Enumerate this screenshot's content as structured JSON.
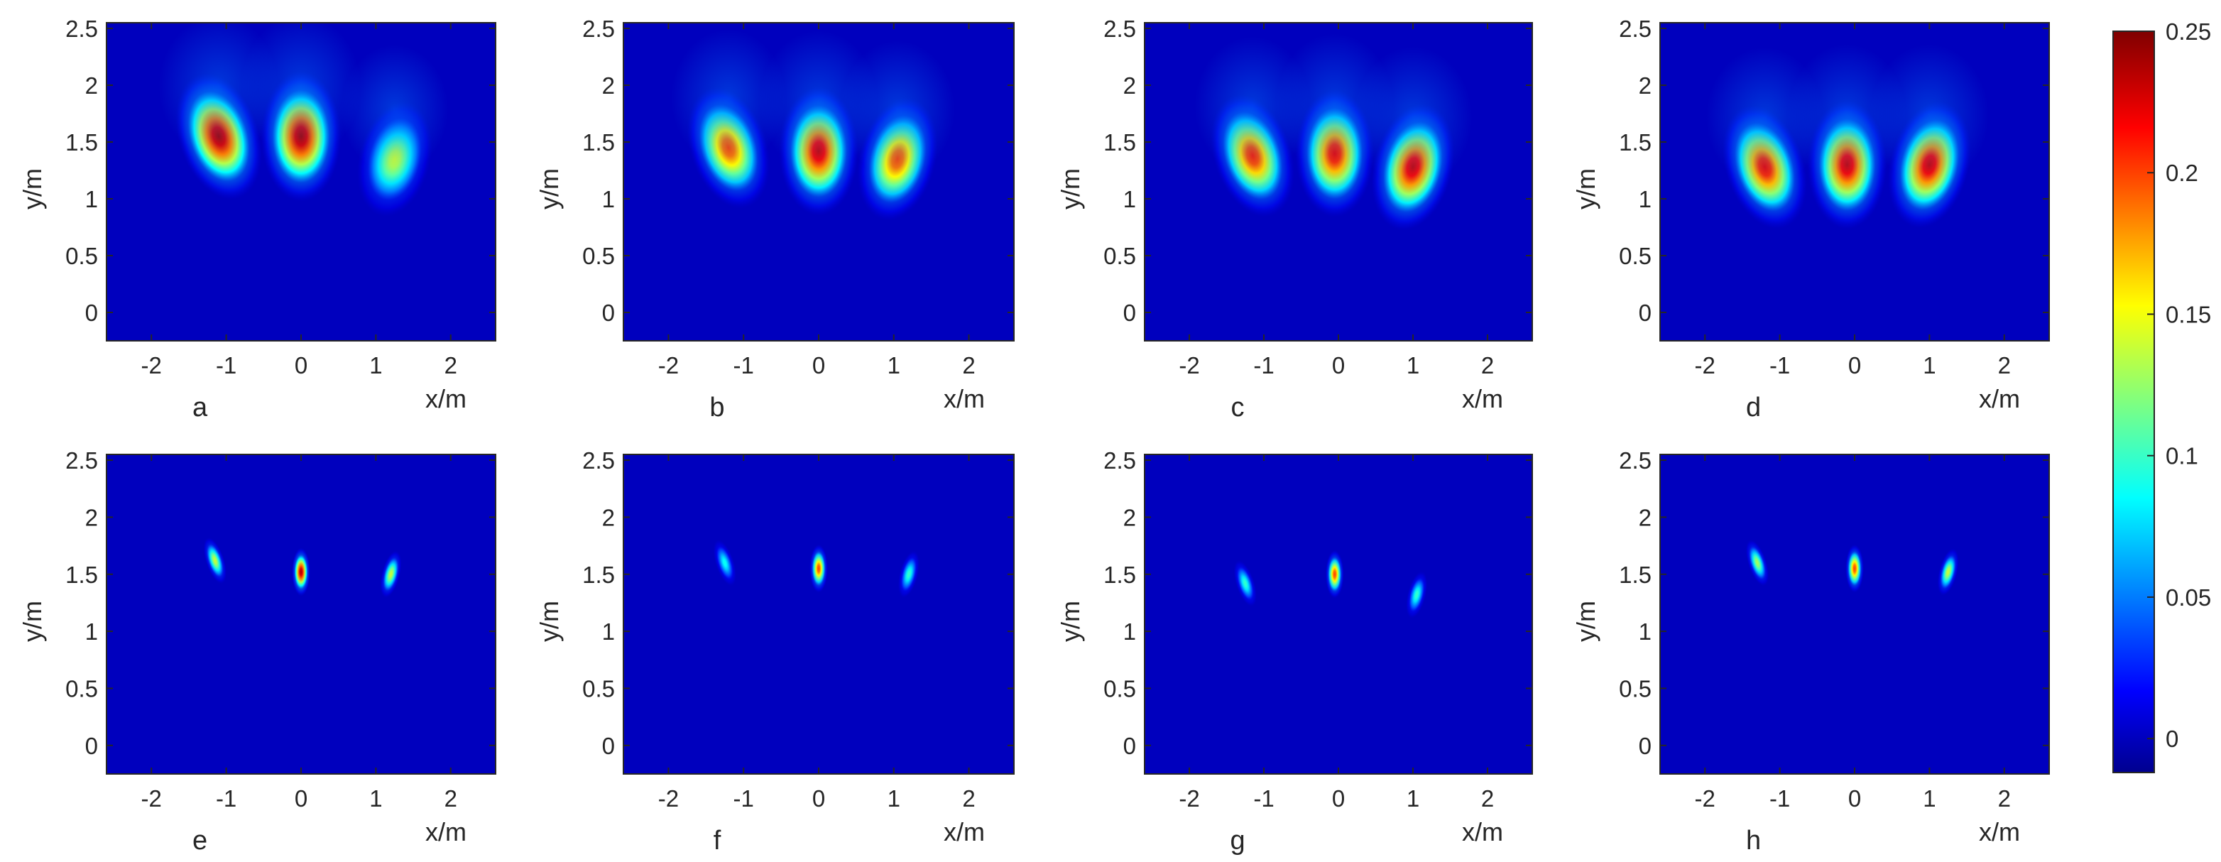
{
  "colormap": {
    "name": "jet",
    "stops": [
      "#00008f",
      "#0000ff",
      "#00ffff",
      "#ffff00",
      "#ff0000",
      "#800000"
    ]
  },
  "colorbar": {
    "ticks": [
      0,
      0.05,
      0.1,
      0.15,
      0.2,
      0.25
    ],
    "tick_labels": [
      "0",
      "0.05",
      "0.1",
      "0.15",
      "0.2",
      "0.25"
    ],
    "range": [
      -0.012,
      0.25
    ]
  },
  "chart_data": [
    {
      "type": "heatmap",
      "panel_label": "a",
      "xlabel": "x/m",
      "ylabel": "y/m",
      "xlim": [
        -2.6,
        2.6
      ],
      "ylim": [
        -0.25,
        2.55
      ],
      "xticks": [
        -2,
        -1,
        0,
        1,
        2
      ],
      "yticks": [
        0,
        0.5,
        1,
        1.5,
        2,
        2.5
      ],
      "xtick_labels": [
        "-2",
        "-1",
        "0",
        "1",
        "2"
      ],
      "ytick_labels": [
        "0",
        "0.5",
        "1",
        "1.5",
        "2",
        "2.5"
      ],
      "peaks": [
        {
          "x": -1.1,
          "y": 1.55,
          "value": 0.24
        },
        {
          "x": 0.0,
          "y": 1.55,
          "value": 0.24
        },
        {
          "x": 1.25,
          "y": 1.35,
          "value": 0.14
        }
      ]
    },
    {
      "type": "heatmap",
      "panel_label": "b",
      "xlabel": "x/m",
      "ylabel": "y/m",
      "xlim": [
        -2.6,
        2.6
      ],
      "ylim": [
        -0.25,
        2.55
      ],
      "xticks": [
        -2,
        -1,
        0,
        1,
        2
      ],
      "yticks": [
        0,
        0.5,
        1,
        1.5,
        2,
        2.5
      ],
      "xtick_labels": [
        "-2",
        "-1",
        "0",
        "1",
        "2"
      ],
      "ytick_labels": [
        "0",
        "0.5",
        "1",
        "1.5",
        "2",
        "2.5"
      ],
      "peaks": [
        {
          "x": -1.2,
          "y": 1.45,
          "value": 0.2
        },
        {
          "x": 0.0,
          "y": 1.42,
          "value": 0.23
        },
        {
          "x": 1.05,
          "y": 1.35,
          "value": 0.2
        }
      ]
    },
    {
      "type": "heatmap",
      "panel_label": "c",
      "xlabel": "x/m",
      "ylabel": "y/m",
      "xlim": [
        -2.6,
        2.6
      ],
      "ylim": [
        -0.25,
        2.55
      ],
      "xticks": [
        -2,
        -1,
        0,
        1,
        2
      ],
      "yticks": [
        0,
        0.5,
        1,
        1.5,
        2,
        2.5
      ],
      "xtick_labels": [
        "-2",
        "-1",
        "0",
        "1",
        "2"
      ],
      "ytick_labels": [
        "0",
        "0.5",
        "1",
        "1.5",
        "2",
        "2.5"
      ],
      "peaks": [
        {
          "x": -1.15,
          "y": 1.38,
          "value": 0.21
        },
        {
          "x": -0.05,
          "y": 1.4,
          "value": 0.22
        },
        {
          "x": 1.0,
          "y": 1.28,
          "value": 0.23
        }
      ]
    },
    {
      "type": "heatmap",
      "panel_label": "d",
      "xlabel": "x/m",
      "ylabel": "y/m",
      "xlim": [
        -2.6,
        2.6
      ],
      "ylim": [
        -0.25,
        2.55
      ],
      "xticks": [
        -2,
        -1,
        0,
        1,
        2
      ],
      "yticks": [
        0,
        0.5,
        1,
        1.5,
        2,
        2.5
      ],
      "xtick_labels": [
        "-2",
        "-1",
        "0",
        "1",
        "2"
      ],
      "ytick_labels": [
        "0",
        "0.5",
        "1",
        "1.5",
        "2",
        "2.5"
      ],
      "peaks": [
        {
          "x": -1.2,
          "y": 1.28,
          "value": 0.22
        },
        {
          "x": -0.1,
          "y": 1.3,
          "value": 0.23
        },
        {
          "x": 1.0,
          "y": 1.3,
          "value": 0.23
        }
      ]
    },
    {
      "type": "heatmap",
      "panel_label": "e",
      "xlabel": "x/m",
      "ylabel": "y/m",
      "xlim": [
        -2.6,
        2.6
      ],
      "ylim": [
        -0.25,
        2.55
      ],
      "xticks": [
        -2,
        -1,
        0,
        1,
        2
      ],
      "yticks": [
        0,
        0.5,
        1,
        1.5,
        2,
        2.5
      ],
      "xtick_labels": [
        "-2",
        "-1",
        "0",
        "1",
        "2"
      ],
      "ytick_labels": [
        "0",
        "0.5",
        "1",
        "1.5",
        "2",
        "2.5"
      ],
      "peaks": [
        {
          "x": -1.15,
          "y": 1.62,
          "value": 0.14
        },
        {
          "x": 0.0,
          "y": 1.52,
          "value": 0.24
        },
        {
          "x": 1.2,
          "y": 1.5,
          "value": 0.14
        }
      ]
    },
    {
      "type": "heatmap",
      "panel_label": "f",
      "xlabel": "x/m",
      "ylabel": "y/m",
      "xlim": [
        -2.6,
        2.6
      ],
      "ylim": [
        -0.25,
        2.55
      ],
      "xticks": [
        -2,
        -1,
        0,
        1,
        2
      ],
      "yticks": [
        0,
        0.5,
        1,
        1.5,
        2,
        2.5
      ],
      "xtick_labels": [
        "-2",
        "-1",
        "0",
        "1",
        "2"
      ],
      "ytick_labels": [
        "0",
        "0.5",
        "1",
        "1.5",
        "2",
        "2.5"
      ],
      "peaks": [
        {
          "x": -1.25,
          "y": 1.6,
          "value": 0.09
        },
        {
          "x": 0.0,
          "y": 1.55,
          "value": 0.2
        },
        {
          "x": 1.2,
          "y": 1.5,
          "value": 0.1
        }
      ]
    },
    {
      "type": "heatmap",
      "panel_label": "g",
      "xlabel": "x/m",
      "ylabel": "y/m",
      "xlim": [
        -2.6,
        2.6
      ],
      "ylim": [
        -0.25,
        2.55
      ],
      "xticks": [
        -2,
        -1,
        0,
        1,
        2
      ],
      "yticks": [
        0,
        0.5,
        1,
        1.5,
        2,
        2.5
      ],
      "xtick_labels": [
        "-2",
        "-1",
        "0",
        "1",
        "2"
      ],
      "ytick_labels": [
        "0",
        "0.5",
        "1",
        "1.5",
        "2",
        "2.5"
      ],
      "peaks": [
        {
          "x": -1.25,
          "y": 1.42,
          "value": 0.1
        },
        {
          "x": -0.05,
          "y": 1.5,
          "value": 0.2
        },
        {
          "x": 1.05,
          "y": 1.32,
          "value": 0.1
        }
      ]
    },
    {
      "type": "heatmap",
      "panel_label": "h",
      "xlabel": "x/m",
      "ylabel": "y/m",
      "xlim": [
        -2.6,
        2.6
      ],
      "ylim": [
        -0.25,
        2.55
      ],
      "xticks": [
        -2,
        -1,
        0,
        1,
        2
      ],
      "yticks": [
        0,
        0.5,
        1,
        1.5,
        2,
        2.5
      ],
      "xtick_labels": [
        "-2",
        "-1",
        "0",
        "1",
        "2"
      ],
      "ytick_labels": [
        "0",
        "0.5",
        "1",
        "1.5",
        "2",
        "2.5"
      ],
      "peaks": [
        {
          "x": -1.3,
          "y": 1.6,
          "value": 0.13
        },
        {
          "x": 0.0,
          "y": 1.55,
          "value": 0.2
        },
        {
          "x": 1.25,
          "y": 1.52,
          "value": 0.14
        }
      ]
    }
  ]
}
